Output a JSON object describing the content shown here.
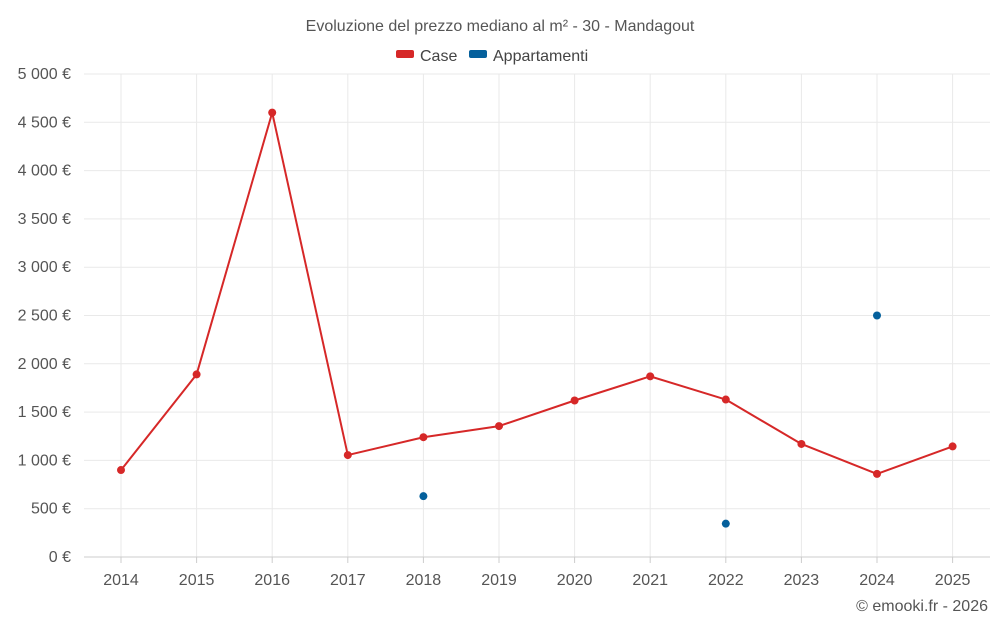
{
  "chart_data": {
    "type": "line",
    "title": "Evoluzione del prezzo mediano al m² - 30 - Mandagout",
    "xlabel": "",
    "ylabel": "",
    "categories": [
      "2014",
      "2015",
      "2016",
      "2017",
      "2018",
      "2019",
      "2020",
      "2021",
      "2022",
      "2023",
      "2024",
      "2025"
    ],
    "ylim": [
      0,
      5000
    ],
    "yticks": [
      0,
      500,
      1000,
      1500,
      2000,
      2500,
      3000,
      3500,
      4000,
      4500,
      5000
    ],
    "ytick_labels": [
      "0 €",
      "500 €",
      "1 000 €",
      "1 500 €",
      "2 000 €",
      "2 500 €",
      "3 000 €",
      "3 500 €",
      "4 000 €",
      "4 500 €",
      "5 000 €"
    ],
    "grid": true,
    "legend_position": "top-center",
    "series": [
      {
        "name": "Case",
        "color": "#d62828",
        "style": "line",
        "values": [
          900,
          1890,
          4600,
          1055,
          1240,
          1355,
          1620,
          1870,
          1630,
          1170,
          860,
          1145
        ]
      },
      {
        "name": "Appartamenti",
        "color": "#05609c",
        "style": "points",
        "values": [
          null,
          null,
          null,
          null,
          630,
          null,
          null,
          null,
          345,
          null,
          2500,
          null
        ]
      }
    ]
  },
  "credit": "© emooki.fr - 2026"
}
